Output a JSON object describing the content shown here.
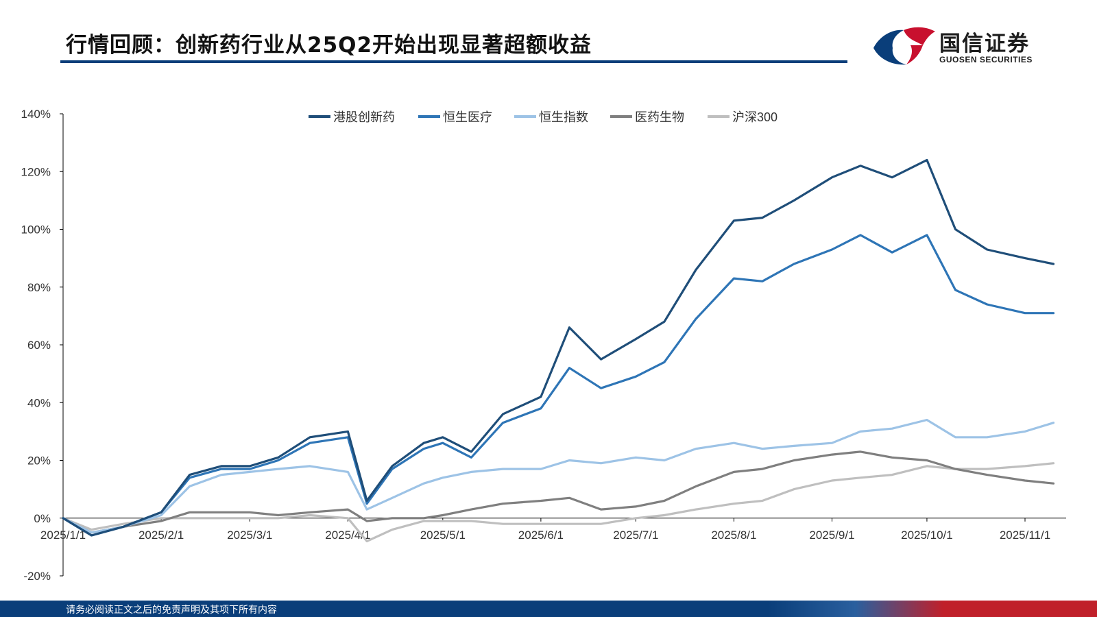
{
  "header": {
    "title": "行情回顾：创新药行业从25Q2开始出现显著超额收益",
    "logo_cn": "国信证券",
    "logo_en": "GUOSEN SECURITIES"
  },
  "footer": {
    "disclaimer": "请务必阅读正文之后的免责声明及其项下所有内容"
  },
  "colors": {
    "title_rule": "#0a3e7a",
    "footer_blue": "#0a3e7a",
    "footer_red": "#c0202a",
    "logo_blue": "#0a3e7a",
    "logo_red": "#c8102e"
  },
  "chart_data": {
    "type": "line",
    "title": "",
    "xlabel": "",
    "ylabel": "",
    "ylim": [
      -0.2,
      1.4
    ],
    "yticks": [
      "-20%",
      "0%",
      "20%",
      "40%",
      "60%",
      "80%",
      "100%",
      "120%",
      "140%"
    ],
    "xticks": [
      "2025/1/1",
      "2025/2/1",
      "2025/3/1",
      "2025/4/1",
      "2025/5/1",
      "2025/6/1",
      "2025/7/1",
      "2025/8/1",
      "2025/9/1",
      "2025/10/1",
      "2025/11/1"
    ],
    "x_dates": [
      "2025-01-01",
      "2025-01-10",
      "2025-01-20",
      "2025-02-01",
      "2025-02-10",
      "2025-02-20",
      "2025-03-01",
      "2025-03-10",
      "2025-03-20",
      "2025-04-01",
      "2025-04-07",
      "2025-04-15",
      "2025-04-25",
      "2025-05-01",
      "2025-05-10",
      "2025-05-20",
      "2025-06-01",
      "2025-06-10",
      "2025-06-20",
      "2025-07-01",
      "2025-07-10",
      "2025-07-20",
      "2025-08-01",
      "2025-08-10",
      "2025-08-20",
      "2025-09-01",
      "2025-09-10",
      "2025-09-20",
      "2025-10-01",
      "2025-10-10",
      "2025-10-20",
      "2025-11-01",
      "2025-11-10"
    ],
    "legend_position": "top-center",
    "grid": false,
    "series": [
      {
        "name": "港股创新药",
        "color": "#1f4e79",
        "values": [
          0.0,
          -0.06,
          -0.03,
          0.02,
          0.15,
          0.18,
          0.18,
          0.21,
          0.28,
          0.3,
          0.06,
          0.18,
          0.26,
          0.28,
          0.23,
          0.36,
          0.42,
          0.66,
          0.55,
          0.62,
          0.68,
          0.86,
          1.03,
          1.04,
          1.1,
          1.18,
          1.22,
          1.18,
          1.24,
          1.0,
          0.93,
          0.9,
          0.88
        ]
      },
      {
        "name": "恒生医疗",
        "color": "#2e75b6",
        "values": [
          0.0,
          -0.06,
          -0.03,
          0.02,
          0.14,
          0.17,
          0.17,
          0.2,
          0.26,
          0.28,
          0.05,
          0.17,
          0.24,
          0.26,
          0.21,
          0.33,
          0.38,
          0.52,
          0.45,
          0.49,
          0.54,
          0.69,
          0.83,
          0.82,
          0.88,
          0.93,
          0.98,
          0.92,
          0.98,
          0.79,
          0.74,
          0.71,
          0.71
        ]
      },
      {
        "name": "恒生指数",
        "color": "#9dc3e6",
        "values": [
          0.0,
          -0.05,
          -0.03,
          0.01,
          0.11,
          0.15,
          0.16,
          0.17,
          0.18,
          0.16,
          0.03,
          0.07,
          0.12,
          0.14,
          0.16,
          0.17,
          0.17,
          0.2,
          0.19,
          0.21,
          0.2,
          0.24,
          0.26,
          0.24,
          0.25,
          0.26,
          0.3,
          0.31,
          0.34,
          0.28,
          0.28,
          0.3,
          0.33
        ]
      },
      {
        "name": "医药生物",
        "color": "#7f7f7f",
        "values": [
          0.0,
          -0.05,
          -0.03,
          -0.01,
          0.02,
          0.02,
          0.02,
          0.01,
          0.02,
          0.03,
          -0.01,
          0.0,
          0.0,
          0.01,
          0.03,
          0.05,
          0.06,
          0.07,
          0.03,
          0.04,
          0.06,
          0.11,
          0.16,
          0.17,
          0.2,
          0.22,
          0.23,
          0.21,
          0.2,
          0.17,
          0.15,
          0.13,
          0.12
        ]
      },
      {
        "name": "沪深300",
        "color": "#bfbfbf",
        "values": [
          0.0,
          -0.04,
          -0.02,
          0.0,
          0.0,
          0.0,
          0.0,
          0.0,
          0.01,
          0.0,
          -0.08,
          -0.04,
          -0.01,
          -0.01,
          -0.01,
          -0.02,
          -0.02,
          -0.02,
          -0.02,
          0.0,
          0.01,
          0.03,
          0.05,
          0.06,
          0.1,
          0.13,
          0.14,
          0.15,
          0.18,
          0.17,
          0.17,
          0.18,
          0.19
        ]
      }
    ]
  }
}
